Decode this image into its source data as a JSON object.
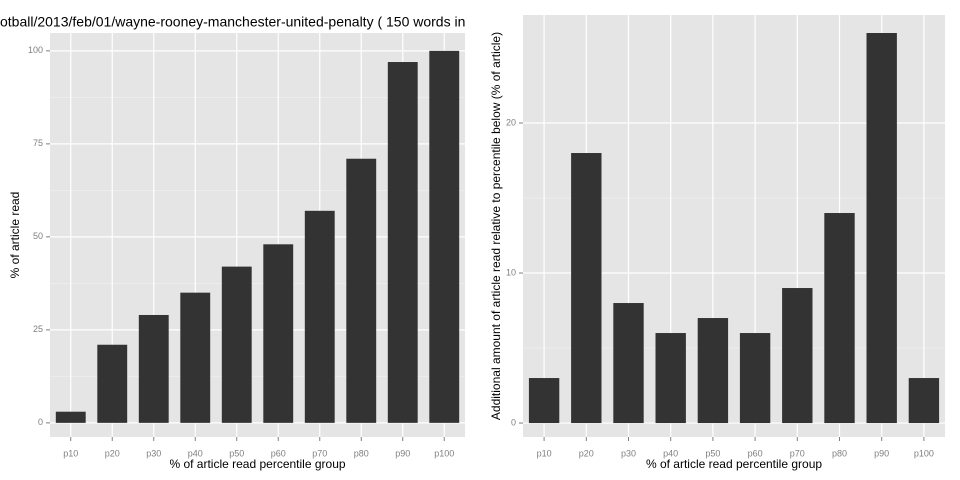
{
  "chart_data": [
    {
      "type": "bar",
      "title": "otball/2013/feb/01/wayne-rooney-manchester-united-penalty ( 150 words in",
      "x_label": "% of article read percentile group",
      "y_label": "% of article read",
      "categories": [
        "p10",
        "p20",
        "p30",
        "p40",
        "p50",
        "p60",
        "p70",
        "p80",
        "p90",
        "p100"
      ],
      "values": [
        3,
        21,
        29,
        35,
        42,
        48,
        57,
        71,
        97,
        100
      ],
      "color": "#333333",
      "ylim": [
        -3.8,
        104.8
      ],
      "yticks": [
        0,
        25,
        50,
        75,
        100
      ],
      "grid": true
    },
    {
      "type": "bar",
      "x_label": "% of article read percentile group",
      "y_label": "Additional amount of article read relative to percentile below (% of article)",
      "categories": [
        "p10",
        "p20",
        "p30",
        "p40",
        "p50",
        "p60",
        "p70",
        "p80",
        "p90",
        "p100"
      ],
      "values": [
        3,
        18,
        8,
        6,
        7,
        6,
        9,
        14,
        26,
        3
      ],
      "color": "#333333",
      "ylim": [
        -0.93,
        27.2
      ],
      "yticks": [
        0,
        10,
        20
      ],
      "grid": true
    }
  ]
}
